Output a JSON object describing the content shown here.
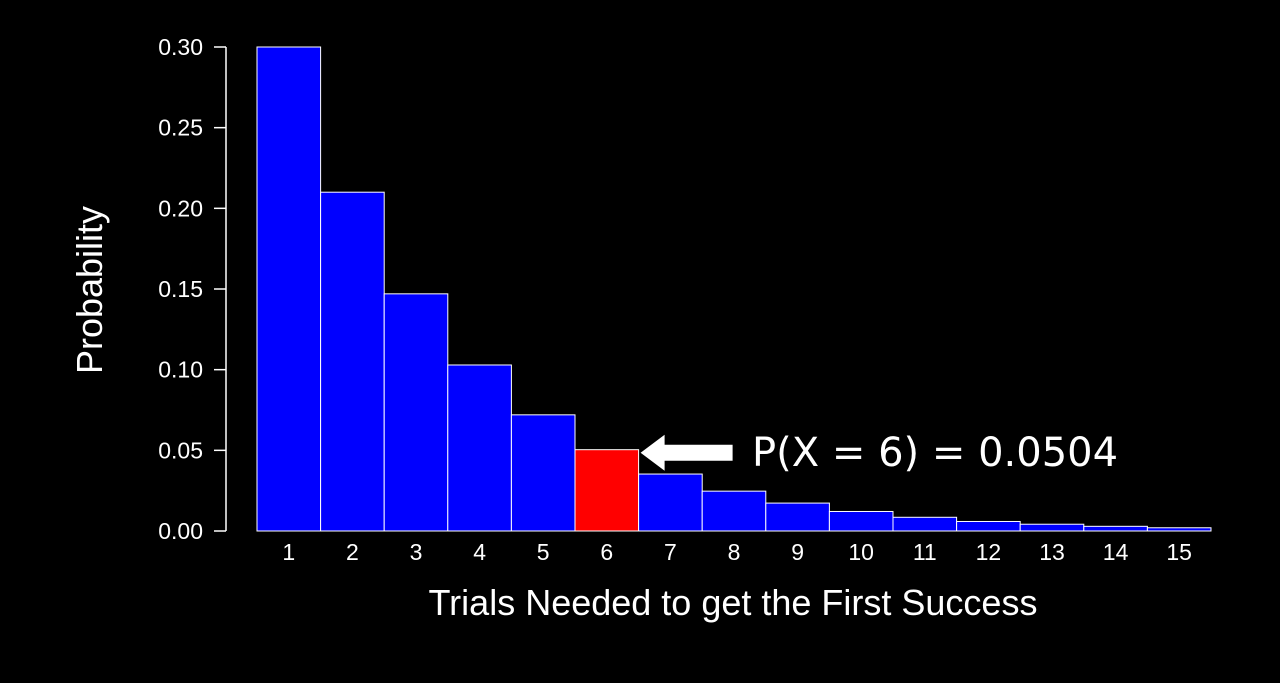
{
  "chart_data": {
    "type": "bar",
    "categories": [
      "1",
      "2",
      "3",
      "4",
      "5",
      "6",
      "7",
      "8",
      "9",
      "10",
      "11",
      "12",
      "13",
      "14",
      "15"
    ],
    "values": [
      0.3,
      0.21,
      0.147,
      0.1029,
      0.072,
      0.0504,
      0.0353,
      0.0247,
      0.0173,
      0.0121,
      0.0085,
      0.0059,
      0.0042,
      0.0029,
      0.002
    ],
    "highlight_index": 5,
    "title": "",
    "xlabel": "Trials Needed to get the First Success",
    "ylabel": "Probability",
    "ylim": [
      0,
      0.3
    ],
    "yticks": [
      "0.00",
      "0.05",
      "0.10",
      "0.15",
      "0.20",
      "0.25",
      "0.30"
    ],
    "grid": false,
    "legend": "none",
    "colors": {
      "bar": "#0000ff",
      "highlight": "#ff0000",
      "bar_edge": "#ffffff",
      "background": "#000000",
      "text": "#ffffff"
    },
    "annotation": {
      "text": "P(X = 6) = 0.0504",
      "points_to_category": "6",
      "icon": "left-arrow-icon"
    }
  }
}
